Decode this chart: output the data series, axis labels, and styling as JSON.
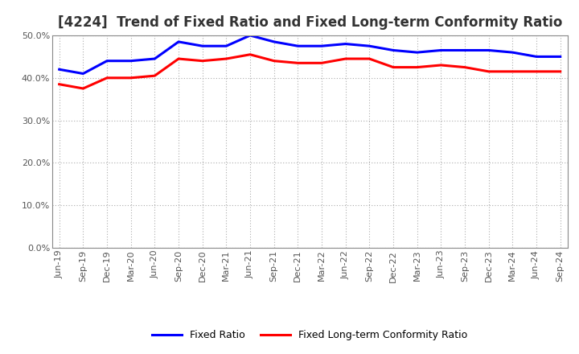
{
  "title": "[4224]  Trend of Fixed Ratio and Fixed Long-term Conformity Ratio",
  "x_labels": [
    "Jun-19",
    "Sep-19",
    "Dec-19",
    "Mar-20",
    "Jun-20",
    "Sep-20",
    "Dec-20",
    "Mar-21",
    "Jun-21",
    "Sep-21",
    "Dec-21",
    "Mar-22",
    "Jun-22",
    "Sep-22",
    "Dec-22",
    "Mar-23",
    "Jun-23",
    "Sep-23",
    "Dec-23",
    "Mar-24",
    "Jun-24",
    "Sep-24"
  ],
  "fixed_ratio": [
    42.0,
    41.0,
    44.0,
    44.0,
    44.5,
    48.5,
    47.5,
    47.5,
    50.0,
    48.5,
    47.5,
    47.5,
    48.0,
    47.5,
    46.5,
    46.0,
    46.5,
    46.5,
    46.5,
    46.0,
    45.0,
    45.0
  ],
  "fixed_lt_conformity": [
    38.5,
    37.5,
    40.0,
    40.0,
    40.5,
    44.5,
    44.0,
    44.5,
    45.5,
    44.0,
    43.5,
    43.5,
    44.5,
    44.5,
    42.5,
    42.5,
    43.0,
    42.5,
    41.5,
    41.5,
    41.5,
    41.5
  ],
  "ylim": [
    0,
    50
  ],
  "yticks": [
    0,
    10,
    20,
    30,
    40,
    50
  ],
  "fixed_ratio_color": "#0000FF",
  "fixed_lt_color": "#FF0000",
  "grid_color": "#AAAAAA",
  "background_color": "#FFFFFF",
  "plot_bg_color": "#FFFFFF",
  "title_fontsize": 12,
  "axis_fontsize": 8,
  "legend_fontsize": 9,
  "title_color": "#333333"
}
